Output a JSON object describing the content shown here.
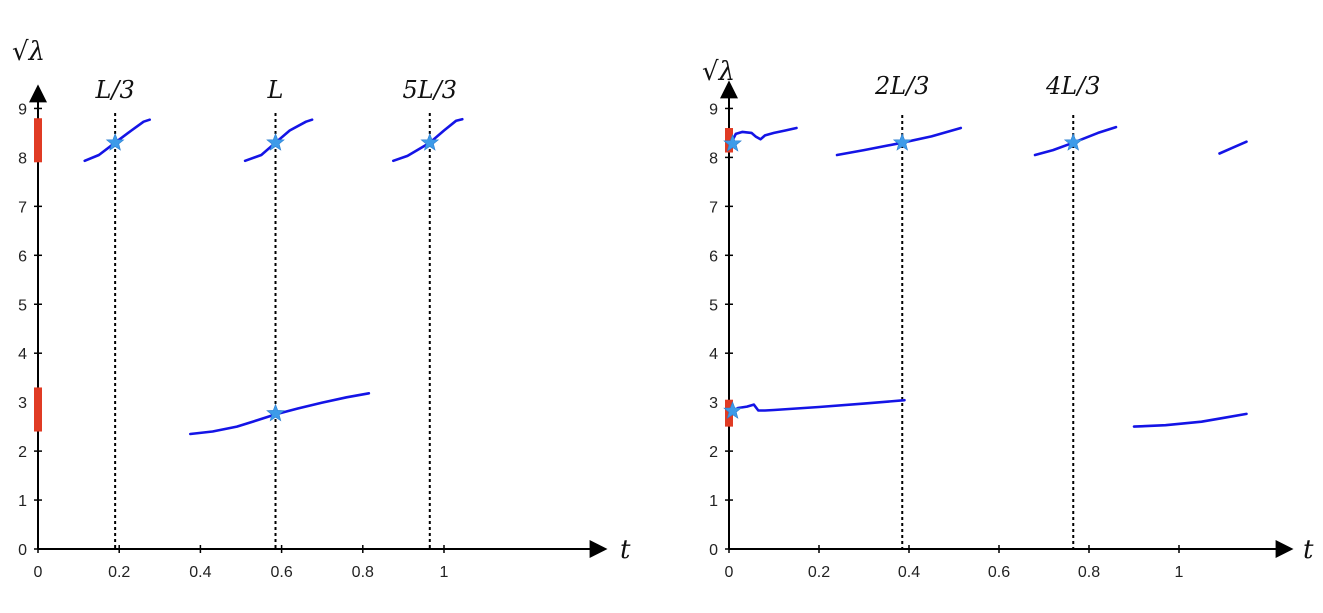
{
  "chart_data": [
    {
      "type": "line",
      "ylabel": "√λ",
      "xlabel": "t",
      "xlim": [
        0,
        1.15
      ],
      "ylim": [
        0,
        9
      ],
      "xticks": [
        {
          "v": 0,
          "label": "0"
        },
        {
          "v": 0.2,
          "label": "0.2"
        },
        {
          "v": 0.4,
          "label": "0.4"
        },
        {
          "v": 0.6,
          "label": "0.6"
        },
        {
          "v": 0.8,
          "label": "0.8"
        },
        {
          "v": 1,
          "label": "1"
        }
      ],
      "yticks": [
        0,
        1,
        2,
        3,
        4,
        5,
        6,
        7,
        8,
        9
      ],
      "vlines": [
        {
          "x": 0.19,
          "label": "L/3"
        },
        {
          "x": 0.585,
          "label": "L"
        },
        {
          "x": 0.965,
          "label": "5L/3"
        }
      ],
      "series": [
        {
          "points": [
            [
              0.115,
              7.93
            ],
            [
              0.15,
              8.05
            ],
            [
              0.19,
              8.3
            ],
            [
              0.23,
              8.55
            ],
            [
              0.26,
              8.73
            ],
            [
              0.275,
              8.77
            ]
          ]
        },
        {
          "points": [
            [
              0.51,
              7.93
            ],
            [
              0.55,
              8.05
            ],
            [
              0.585,
              8.3
            ],
            [
              0.62,
              8.55
            ],
            [
              0.66,
              8.73
            ],
            [
              0.675,
              8.77
            ]
          ]
        },
        {
          "points": [
            [
              0.875,
              7.93
            ],
            [
              0.91,
              8.03
            ],
            [
              0.965,
              8.3
            ],
            [
              1.0,
              8.55
            ],
            [
              1.03,
              8.75
            ],
            [
              1.045,
              8.78
            ]
          ]
        },
        {
          "points": [
            [
              0.375,
              2.35
            ],
            [
              0.43,
              2.4
            ],
            [
              0.49,
              2.5
            ],
            [
              0.54,
              2.63
            ],
            [
              0.585,
              2.75
            ],
            [
              0.64,
              2.87
            ],
            [
              0.7,
              2.99
            ],
            [
              0.76,
              3.1
            ],
            [
              0.815,
              3.18
            ]
          ]
        }
      ],
      "stars": [
        [
          0.19,
          8.3
        ],
        [
          0.585,
          8.3
        ],
        [
          0.965,
          8.3
        ],
        [
          0.585,
          2.77
        ]
      ],
      "red_bars": [
        [
          7.9,
          8.8
        ],
        [
          2.4,
          3.3
        ]
      ]
    },
    {
      "type": "line",
      "ylabel": "√λ",
      "xlabel": "t",
      "xlim": [
        0,
        1.15
      ],
      "ylim": [
        0,
        9
      ],
      "xticks": [
        {
          "v": 0,
          "label": "0"
        },
        {
          "v": 0.2,
          "label": "0.2"
        },
        {
          "v": 0.4,
          "label": "0.4"
        },
        {
          "v": 0.6,
          "label": "0.6"
        },
        {
          "v": 0.8,
          "label": "0.8"
        },
        {
          "v": 1,
          "label": "1"
        }
      ],
      "yticks": [
        0,
        1,
        2,
        3,
        4,
        5,
        6,
        7,
        8,
        9
      ],
      "vlines": [
        {
          "x": 0.385,
          "label": "2L/3"
        },
        {
          "x": 0.765,
          "label": "4L/3"
        }
      ],
      "series": [
        {
          "points": [
            [
              0.005,
              8.3
            ],
            [
              0.015,
              8.48
            ],
            [
              0.03,
              8.52
            ],
            [
              0.05,
              8.5
            ],
            [
              0.06,
              8.42
            ],
            [
              0.07,
              8.37
            ],
            [
              0.08,
              8.45
            ],
            [
              0.1,
              8.5
            ],
            [
              0.125,
              8.55
            ],
            [
              0.15,
              8.6
            ]
          ]
        },
        {
          "points": [
            [
              0.24,
              8.05
            ],
            [
              0.3,
              8.15
            ],
            [
              0.385,
              8.3
            ],
            [
              0.45,
              8.43
            ],
            [
              0.515,
              8.6
            ]
          ]
        },
        {
          "points": [
            [
              0.68,
              8.05
            ],
            [
              0.72,
              8.15
            ],
            [
              0.765,
              8.3
            ],
            [
              0.82,
              8.5
            ],
            [
              0.86,
              8.62
            ]
          ]
        },
        {
          "points": [
            [
              1.09,
              8.08
            ],
            [
              1.12,
              8.2
            ],
            [
              1.15,
              8.32
            ]
          ]
        },
        {
          "points": [
            [
              0.005,
              2.8
            ],
            [
              0.02,
              2.88
            ],
            [
              0.04,
              2.91
            ],
            [
              0.055,
              2.95
            ],
            [
              0.065,
              2.83
            ],
            [
              0.08,
              2.83
            ],
            [
              0.1,
              2.84
            ],
            [
              0.2,
              2.9
            ],
            [
              0.3,
              2.97
            ],
            [
              0.39,
              3.04
            ]
          ]
        },
        {
          "points": [
            [
              0.9,
              2.5
            ],
            [
              0.97,
              2.53
            ],
            [
              1.05,
              2.6
            ],
            [
              1.1,
              2.68
            ],
            [
              1.15,
              2.76
            ]
          ]
        }
      ],
      "stars": [
        [
          0.008,
          8.28
        ],
        [
          0.385,
          8.3
        ],
        [
          0.765,
          8.3
        ],
        [
          0.008,
          2.82
        ]
      ],
      "red_bars": [
        [
          8.1,
          8.6
        ],
        [
          2.5,
          3.05
        ]
      ]
    }
  ]
}
